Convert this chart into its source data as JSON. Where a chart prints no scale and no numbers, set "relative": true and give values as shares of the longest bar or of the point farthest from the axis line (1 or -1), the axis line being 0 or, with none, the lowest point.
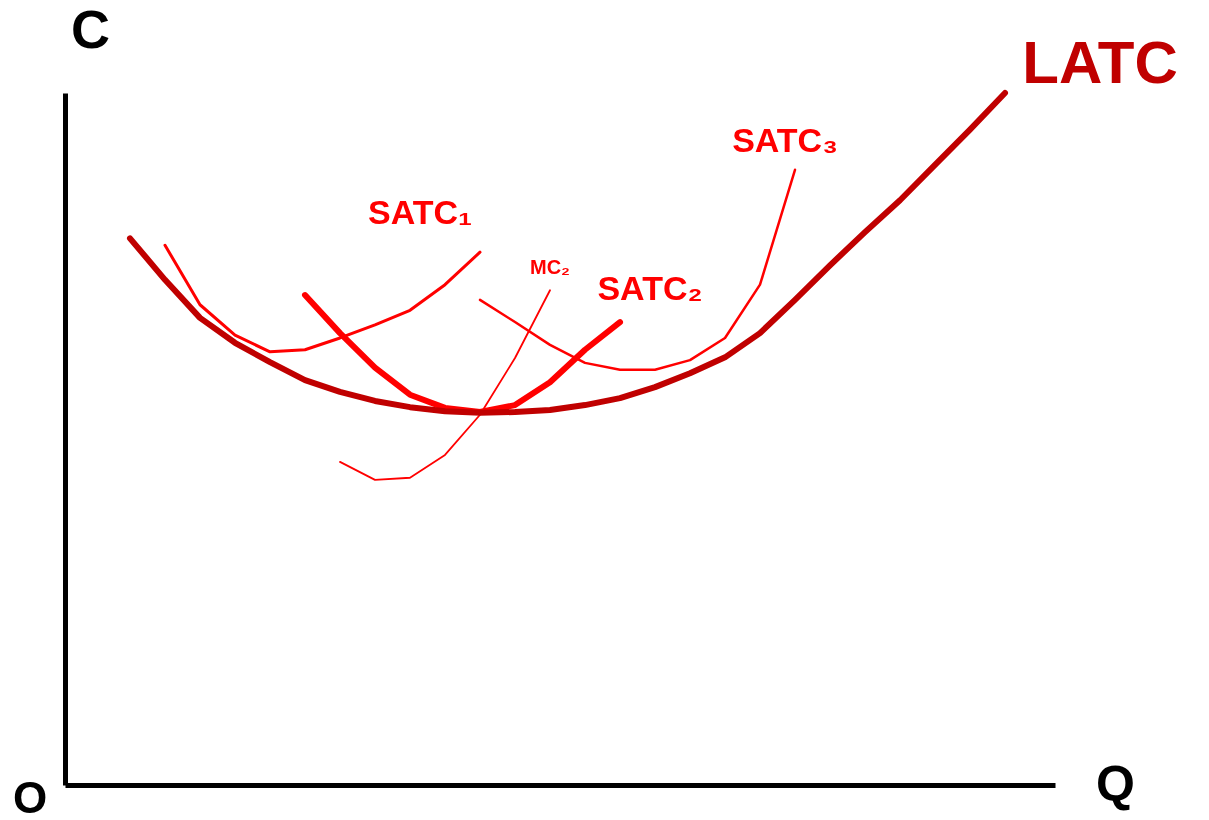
{
  "chart_data": {
    "type": "line",
    "relative": true,
    "xlabel": "Q",
    "ylabel": "C",
    "annotations": [
      "O"
    ],
    "categories": [
      null,
      null,
      null,
      null,
      null,
      null,
      null,
      null,
      null,
      null,
      null,
      null,
      null,
      null,
      null,
      null,
      null,
      null,
      null,
      null,
      null,
      null,
      null,
      null,
      null,
      null
    ],
    "series": [
      {
        "name": "SATC₁",
        "color": "#ff0000",
        "values": [
          null,
          0.78,
          0.694,
          0.65,
          0.626,
          0.629,
          0.646,
          0.665,
          0.686,
          0.723,
          0.77,
          null,
          null,
          null,
          null,
          null,
          null,
          null,
          null,
          null,
          null,
          null,
          null,
          null,
          null,
          null
        ]
      },
      {
        "name": "MC₂",
        "color": "#ff0000",
        "values": [
          null,
          null,
          null,
          null,
          null,
          null,
          0.467,
          0.441,
          0.444,
          0.477,
          0.535,
          0.617,
          0.715,
          null,
          null,
          null,
          null,
          null,
          null,
          null,
          null,
          null,
          null,
          null,
          null,
          null
        ]
      },
      {
        "name": "SATC₂",
        "color": "#ff0000",
        "values": [
          null,
          null,
          null,
          null,
          null,
          0.708,
          0.653,
          0.603,
          0.564,
          0.545,
          0.539,
          0.549,
          0.582,
          0.629,
          0.669,
          null,
          null,
          null,
          null,
          null,
          null,
          null,
          null,
          null,
          null,
          null
        ]
      },
      {
        "name": "SATC₃",
        "color": "#ff0000",
        "values": [
          null,
          null,
          null,
          null,
          null,
          null,
          null,
          null,
          null,
          null,
          0.701,
          0.669,
          0.636,
          0.61,
          0.6,
          0.6,
          0.614,
          0.646,
          0.723,
          0.889,
          null,
          null,
          null,
          null,
          null,
          null
        ]
      },
      {
        "name": "LATC",
        "color": "#c00000",
        "values": [
          0.79,
          0.73,
          0.675,
          0.639,
          0.611,
          0.585,
          0.568,
          0.555,
          0.546,
          0.54,
          0.538,
          0.539,
          0.542,
          0.549,
          0.559,
          0.575,
          0.595,
          0.618,
          0.653,
          0.701,
          0.751,
          0.799,
          0.845,
          0.896,
          0.947,
          1.0
        ]
      }
    ]
  }
}
